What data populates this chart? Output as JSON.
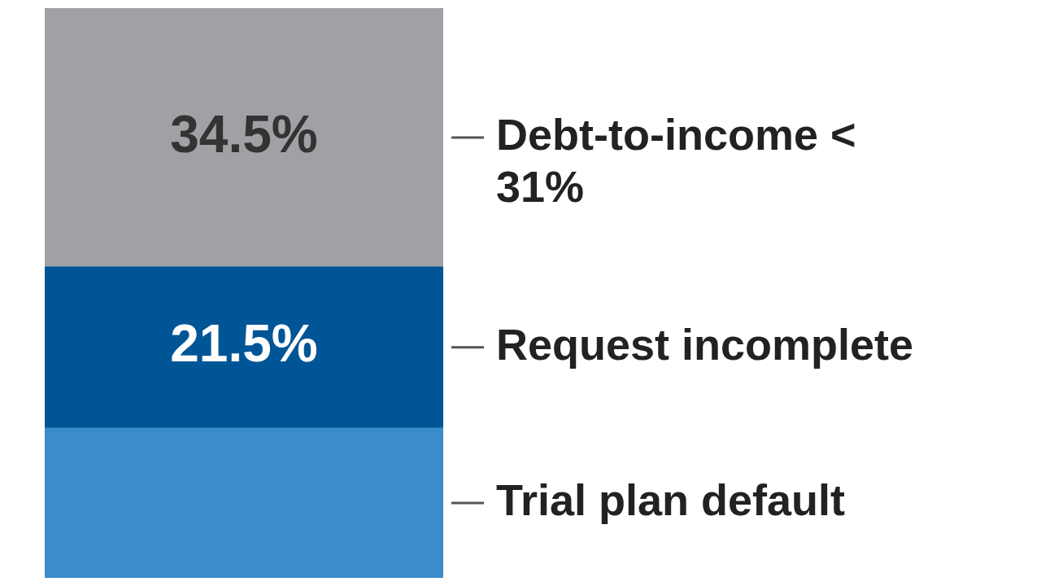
{
  "chart_data": {
    "type": "bar",
    "stacked": true,
    "categories": [
      null
    ],
    "series": [
      {
        "name": "Trial plan default",
        "color": "#3a8ccb",
        "values": [
          20
        ]
      },
      {
        "name": "Request incomplete",
        "color": "#005596",
        "values": [
          21.5
        ],
        "value_labels": [
          "21.5%"
        ]
      },
      {
        "name": "Debt-to-income < 31%",
        "color": "#a0a1a5",
        "values": [
          34.5
        ],
        "value_labels": [
          "34.5%"
        ]
      }
    ],
    "ylim": [
      0,
      76
    ]
  }
}
